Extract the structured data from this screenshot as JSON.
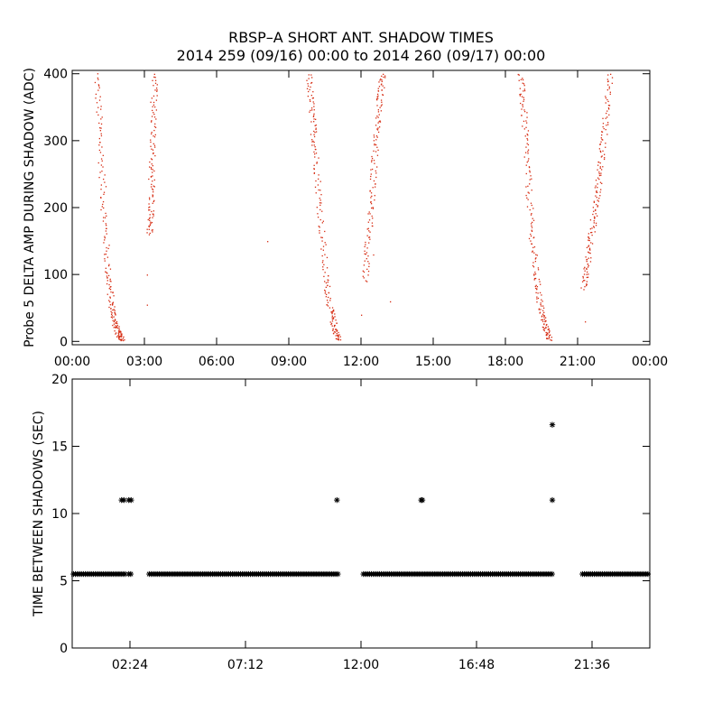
{
  "header": {
    "title": "RBSP–A SHORT ANT. SHADOW TIMES",
    "subtitle": "2014 259 (09/16) 00:00 to 2014 260 (09/17) 00:00"
  },
  "colors": {
    "top_points": "#d62a10",
    "bottom_points": "#000000",
    "axes": "#000000"
  },
  "chart_data": [
    {
      "type": "scatter",
      "title": "",
      "ylabel": "Probe 5 DELTA AMP DURING SHADOW (ADC)",
      "xlabel": "",
      "x_unit": "hours",
      "xlim": [
        0,
        24
      ],
      "ylim": [
        -5,
        405
      ],
      "x_ticks": [
        0,
        3,
        6,
        9,
        12,
        15,
        18,
        21,
        24
      ],
      "x_tick_labels": [
        "00:00",
        "03:00",
        "06:00",
        "09:00",
        "12:00",
        "15:00",
        "18:00",
        "21:00",
        "00:00"
      ],
      "y_ticks": [
        0,
        100,
        200,
        300,
        400
      ],
      "y_tick_labels": [
        "0",
        "100",
        "200",
        "300",
        "400"
      ],
      "grid": false,
      "series": [
        {
          "name": "",
          "kind": "descending",
          "x": [
            1.0,
            1.15,
            1.3,
            1.45,
            1.6,
            1.75,
            1.9,
            2.1
          ],
          "y": [
            400,
            300,
            200,
            110,
            60,
            30,
            12,
            2
          ]
        },
        {
          "name": "",
          "kind": "ascending",
          "x": [
            3.2,
            3.25,
            3.3,
            3.35,
            3.4
          ],
          "y": [
            160,
            200,
            260,
            330,
            400
          ]
        },
        {
          "name": "",
          "kind": "descending",
          "x": [
            9.8,
            9.95,
            10.1,
            10.3,
            10.5,
            10.7,
            10.9,
            11.05
          ],
          "y": [
            400,
            340,
            280,
            190,
            100,
            50,
            20,
            3
          ]
        },
        {
          "name": "",
          "kind": "ascending",
          "x": [
            12.15,
            12.3,
            12.45,
            12.6,
            12.75,
            12.9
          ],
          "y": [
            90,
            160,
            230,
            300,
            360,
            400
          ]
        },
        {
          "name": "",
          "kind": "descending",
          "x": [
            18.6,
            18.75,
            18.9,
            19.05,
            19.25,
            19.45,
            19.65,
            19.85
          ],
          "y": [
            400,
            340,
            260,
            170,
            100,
            50,
            22,
            3
          ]
        },
        {
          "name": "",
          "kind": "ascending",
          "x": [
            21.2,
            21.4,
            21.6,
            21.8,
            21.95,
            22.15,
            22.35
          ],
          "y": [
            80,
            120,
            170,
            220,
            270,
            330,
            400
          ]
        }
      ],
      "isolated_points": {
        "x": [
          8.1,
          3.1,
          3.1,
          12.0,
          12.5,
          13.2,
          21.3
        ],
        "y": [
          150,
          100,
          55,
          40,
          130,
          60,
          30
        ]
      }
    },
    {
      "type": "scatter",
      "title": "",
      "ylabel": "TIME BETWEEN SHADOWS (SEC)",
      "xlabel": "",
      "x_unit": "hours",
      "xlim": [
        0,
        24
      ],
      "ylim": [
        0,
        20
      ],
      "x_ticks": [
        2.4,
        7.2,
        12.0,
        16.8,
        21.6
      ],
      "x_tick_labels": [
        "02:24",
        "07:12",
        "12:00",
        "16:48",
        "21:36"
      ],
      "y_ticks": [
        0,
        5,
        10,
        15,
        20
      ],
      "y_tick_labels": [
        "0",
        "5",
        "10",
        "15",
        "20"
      ],
      "grid": false,
      "marker": "asterisk",
      "baseline_value": 5.5,
      "baseline_segments": [
        [
          0.05,
          2.2
        ],
        [
          2.35,
          2.45
        ],
        [
          3.2,
          11.05
        ],
        [
          12.1,
          19.95
        ],
        [
          21.2,
          24.0
        ]
      ],
      "points": [
        {
          "x": 2.05,
          "y": 11
        },
        {
          "x": 2.15,
          "y": 11
        },
        {
          "x": 2.35,
          "y": 11
        },
        {
          "x": 2.45,
          "y": 11
        },
        {
          "x": 11.0,
          "y": 11
        },
        {
          "x": 14.5,
          "y": 11
        },
        {
          "x": 14.55,
          "y": 11
        },
        {
          "x": 19.95,
          "y": 11
        },
        {
          "x": 19.95,
          "y": 16.6
        }
      ]
    }
  ]
}
